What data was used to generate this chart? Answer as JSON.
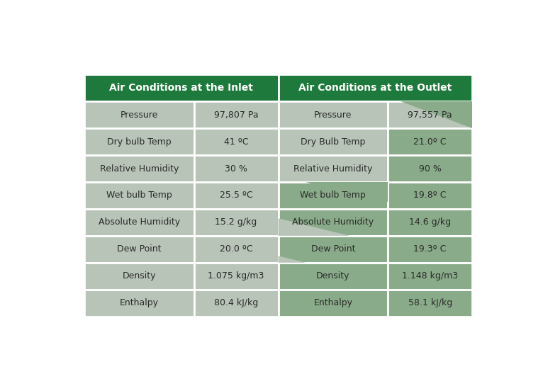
{
  "title_inlet": "Air Conditions at the Inlet",
  "title_outlet": "Air Conditions at the Outlet",
  "header_bg": "#1e7a3c",
  "header_text_color": "#ffffff",
  "cell_bg_gray": "#b8c4b8",
  "cell_bg_green": "#8aab8a",
  "cell_border": "#ffffff",
  "text_color": "#2a2a2a",
  "rows": [
    [
      "Pressure",
      "97,807 Pa",
      "Pressure",
      "97,557 Pa"
    ],
    [
      "Dry bulb Temp",
      "41 ºC",
      "Dry Bulb Temp",
      "21.0º C"
    ],
    [
      "Relative Humidity",
      "30 %",
      "Relative Humidity",
      "90 %"
    ],
    [
      "Wet bulb Temp",
      "25.5 ºC",
      "Wet bulb Temp",
      "19.8º C"
    ],
    [
      "Absolute Humidity",
      "15.2 g/kg",
      "Absolute Humidity",
      "14.6 g/kg"
    ],
    [
      "Dew Point",
      "20.0 ºC",
      "Dew Point",
      "19.3º C"
    ],
    [
      "Density",
      "1.075 kg/m3",
      "Density",
      "1.148 kg/m3"
    ],
    [
      "Enthalpy",
      "80.4 kJ/kg",
      "Enthalpy",
      "58.1 kJ/kg"
    ]
  ],
  "figsize": [
    7.66,
    5.52
  ],
  "dpi": 100,
  "font_size": 9,
  "header_font_size": 10
}
